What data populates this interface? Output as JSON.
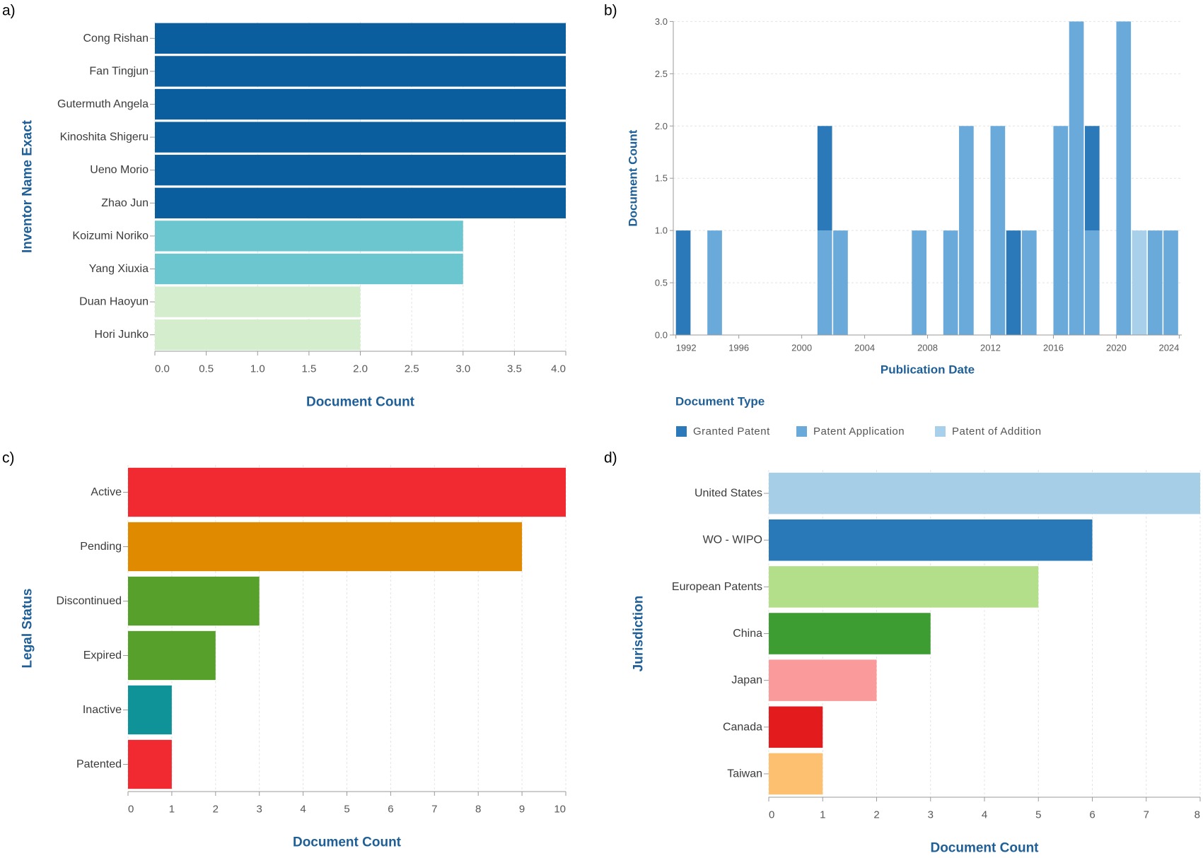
{
  "panel_labels": [
    "a)",
    "b)",
    "c)",
    "d)"
  ],
  "chart_data": [
    {
      "type": "bar",
      "orientation": "horizontal",
      "categories": [
        "Cong Rishan",
        "Fan Tingjun",
        "Gutermuth Angela",
        "Kinoshita Shigeru",
        "Ueno Morio",
        "Zhao Jun",
        "Koizumi Noriko",
        "Yang Xiuxia",
        "Duan Haoyun",
        "Hori Junko"
      ],
      "values": [
        4,
        4,
        4,
        4,
        4,
        4,
        3,
        3,
        2,
        2
      ],
      "colors": [
        "#0b5e9e",
        "#0b5e9e",
        "#0b5e9e",
        "#0b5e9e",
        "#0b5e9e",
        "#0b5e9e",
        "#6cc6d0",
        "#6cc6d0",
        "#d3edcd",
        "#d3edcd"
      ],
      "xlabel": "Document Count",
      "ylabel": "Inventor Name Exact",
      "xticks": [
        "0.0",
        "0.5",
        "1.0",
        "1.5",
        "2.0",
        "2.5",
        "3.0",
        "3.5",
        "4.0"
      ],
      "xlim": [
        0,
        4
      ],
      "grid": true
    },
    {
      "type": "bar",
      "stacked": true,
      "x": [
        1992,
        1994,
        2001,
        2002,
        2007,
        2009,
        2010,
        2012,
        2013,
        2014,
        2016,
        2017,
        2018,
        2020,
        2021,
        2022,
        2023
      ],
      "series": [
        {
          "name": "Granted Patent",
          "color": "#2b79b9",
          "values": [
            1,
            0,
            1,
            0,
            0,
            0,
            0,
            0,
            1,
            0,
            0,
            0,
            1,
            0,
            0,
            0,
            0
          ]
        },
        {
          "name": "Patent Application",
          "color": "#6aaadb",
          "values": [
            0,
            1,
            1,
            1,
            1,
            1,
            2,
            2,
            0,
            1,
            2,
            3,
            1,
            3,
            0,
            1,
            1
          ]
        },
        {
          "name": "Patent of Addition",
          "color": "#a9d0ea",
          "values": [
            0,
            0,
            0,
            0,
            0,
            0,
            0,
            0,
            0,
            0,
            0,
            0,
            0,
            0,
            1,
            0,
            0
          ]
        }
      ],
      "xlabel": "Publication Date",
      "ylabel": "Document Count",
      "legend_title": "Document Type",
      "legend_position": "bottom-left",
      "xticks": [
        "1992",
        "1996",
        "2000",
        "2004",
        "2008",
        "2012",
        "2016",
        "2020",
        "2024"
      ],
      "yticks": [
        "0.0",
        "0.5",
        "1.0",
        "1.5",
        "2.0",
        "2.5",
        "3.0"
      ],
      "xlim": [
        1992,
        2024
      ],
      "ylim": [
        0,
        3
      ],
      "grid": true
    },
    {
      "type": "bar",
      "orientation": "horizontal",
      "categories": [
        "Active",
        "Pending",
        "Discontinued",
        "Expired",
        "Inactive",
        "Patented"
      ],
      "values": [
        10,
        9,
        3,
        2,
        1,
        1
      ],
      "colors": [
        "#f12a31",
        "#e08a00",
        "#56a02b",
        "#56a02b",
        "#0f9399",
        "#f12a31"
      ],
      "xlabel": "Document Count",
      "ylabel": "Legal Status",
      "xticks": [
        "0",
        "1",
        "2",
        "3",
        "4",
        "5",
        "6",
        "7",
        "8",
        "9",
        "10"
      ],
      "xlim": [
        0,
        10
      ],
      "grid": true
    },
    {
      "type": "bar",
      "orientation": "horizontal",
      "categories": [
        "United States",
        "WO - WIPO",
        "European Patents",
        "China",
        "Japan",
        "Canada",
        "Taiwan"
      ],
      "values": [
        8,
        6,
        5,
        3,
        2,
        1,
        1
      ],
      "colors": [
        "#a6cee6",
        "#2979b9",
        "#b3de8a",
        "#3d9c32",
        "#fb9a9a",
        "#e31b1d",
        "#fdbf70"
      ],
      "xlabel": "Document Count",
      "ylabel": "Jurisdiction",
      "xticks": [
        "0",
        "1",
        "2",
        "3",
        "4",
        "5",
        "6",
        "7",
        "8"
      ],
      "xlim": [
        0,
        8
      ],
      "grid": true
    }
  ]
}
